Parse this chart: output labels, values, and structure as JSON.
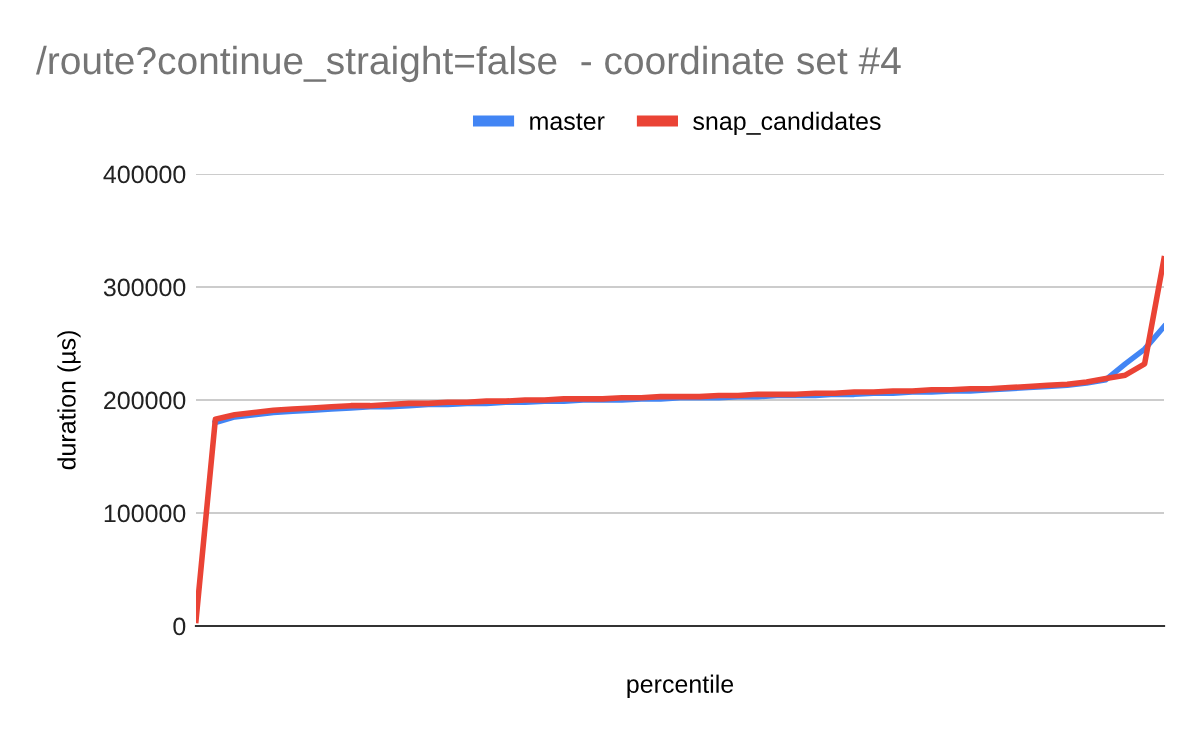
{
  "chart_data": {
    "type": "line",
    "title": "/route?continue_straight=false  - coordinate set #4",
    "xlabel": "percentile",
    "ylabel": "duration (µs)",
    "categories": [
      null,
      null,
      null,
      null,
      null,
      null,
      null,
      null,
      null,
      null,
      null,
      null,
      null,
      null,
      null,
      null,
      null,
      null,
      null,
      null,
      null,
      null,
      null,
      null,
      null,
      null,
      null,
      null,
      null,
      null,
      null,
      null,
      null,
      null,
      null,
      null,
      null,
      null,
      null,
      null,
      null,
      null,
      null,
      null,
      null,
      null,
      null,
      null,
      null,
      null,
      null
    ],
    "series": [
      {
        "name": "master",
        "color": "#4285f4",
        "values": [
          null,
          180000,
          185000,
          187000,
          189000,
          190000,
          191000,
          192000,
          193000,
          194000,
          194000,
          195000,
          196000,
          196000,
          197000,
          197000,
          198000,
          198000,
          199000,
          199000,
          200000,
          200000,
          200000,
          201000,
          201000,
          202000,
          202000,
          202000,
          203000,
          203000,
          204000,
          204000,
          204000,
          205000,
          205000,
          206000,
          206000,
          207000,
          207000,
          208000,
          208000,
          209000,
          210000,
          211000,
          212000,
          213000,
          215000,
          218000,
          232000,
          245000,
          265000
        ]
      },
      {
        "name": "snap_candidates",
        "color": "#ea4335",
        "values": [
          5000,
          183000,
          187000,
          189000,
          191000,
          192000,
          193000,
          194000,
          195000,
          195000,
          196000,
          197000,
          197000,
          198000,
          198000,
          199000,
          199000,
          200000,
          200000,
          201000,
          201000,
          201000,
          202000,
          202000,
          203000,
          203000,
          203000,
          204000,
          204000,
          205000,
          205000,
          205000,
          206000,
          206000,
          207000,
          207000,
          208000,
          208000,
          209000,
          209000,
          210000,
          210000,
          211000,
          212000,
          213000,
          214000,
          216000,
          219000,
          222000,
          232000,
          325000
        ]
      }
    ],
    "ylim": [
      0,
      400000
    ],
    "yticks": [
      0,
      100000,
      200000,
      300000,
      400000
    ],
    "grid": "y",
    "legend": "top"
  }
}
